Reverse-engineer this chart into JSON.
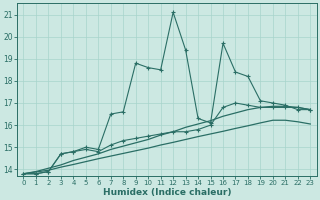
{
  "bg_color": "#cce8e2",
  "line_color": "#2a6e65",
  "grid_color": "#a8d4cc",
  "xlim": [
    -0.5,
    23.5
  ],
  "ylim": [
    13.7,
    21.5
  ],
  "xticks": [
    0,
    1,
    2,
    3,
    4,
    5,
    6,
    7,
    8,
    9,
    10,
    11,
    12,
    13,
    14,
    15,
    16,
    17,
    18,
    19,
    20,
    21,
    22,
    23
  ],
  "yticks": [
    14,
    15,
    16,
    17,
    18,
    19,
    20,
    21
  ],
  "xlabel": "Humidex (Indice chaleur)",
  "jagged1": [
    13.8,
    13.8,
    13.9,
    14.7,
    14.8,
    15.0,
    14.9,
    16.5,
    16.6,
    18.8,
    18.6,
    18.5,
    21.1,
    19.4,
    16.3,
    16.1,
    19.7,
    18.4,
    18.2,
    17.1,
    17.0,
    16.9,
    16.7,
    16.7
  ],
  "smooth1": [
    13.8,
    13.8,
    13.9,
    14.7,
    14.8,
    14.9,
    14.8,
    15.1,
    15.3,
    15.4,
    15.5,
    15.6,
    15.7,
    15.7,
    15.8,
    16.0,
    16.8,
    17.0,
    16.9,
    16.8,
    16.8,
    16.8,
    16.8,
    16.7
  ],
  "trend_upper": [
    13.8,
    13.9,
    14.05,
    14.2,
    14.4,
    14.55,
    14.7,
    14.9,
    15.05,
    15.2,
    15.35,
    15.55,
    15.7,
    15.9,
    16.05,
    16.2,
    16.4,
    16.55,
    16.7,
    16.8,
    16.85,
    16.85,
    16.8,
    16.7
  ],
  "trend_lower": [
    13.8,
    13.88,
    13.96,
    14.1,
    14.22,
    14.35,
    14.48,
    14.6,
    14.72,
    14.84,
    14.96,
    15.1,
    15.22,
    15.35,
    15.48,
    15.6,
    15.72,
    15.85,
    15.97,
    16.1,
    16.22,
    16.22,
    16.15,
    16.05
  ]
}
